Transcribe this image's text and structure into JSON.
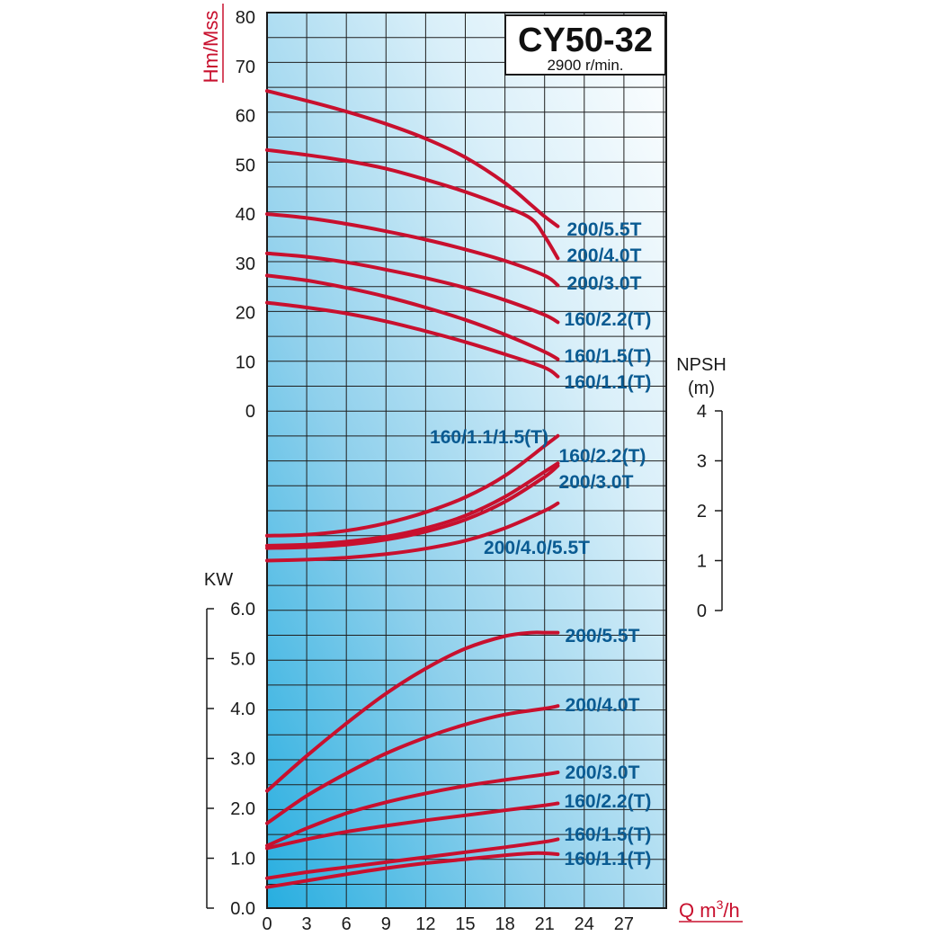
{
  "chart_data": {
    "type": "line",
    "title": "CY50-32",
    "subtitle": "2900 r/min.",
    "xlabel": "Q m³/h",
    "xlabel_base": "Q m",
    "xlabel_sup": "3",
    "xlabel_tail": "/h",
    "x_ticks": [
      "0",
      "3",
      "6",
      "9",
      "12",
      "15",
      "18",
      "21",
      "24",
      "27"
    ],
    "xlim": [
      0,
      30
    ],
    "grid": true,
    "colors": {
      "curve": "#c8102e",
      "label": "#0a5b92",
      "grid": "#1a1a1a"
    },
    "panels": [
      {
        "name": "head",
        "ylabel": "Hm/Mss",
        "ylim": [
          0,
          80
        ],
        "y_ticks": [
          "0",
          "10",
          "20",
          "30",
          "40",
          "50",
          "60",
          "70",
          "80"
        ],
        "series": [
          {
            "name": "200/5.5T",
            "x": [
              0,
              3,
              6,
              9,
              12,
              15,
              18,
              20,
              21,
              22
            ],
            "y": [
              65,
              63,
              60.8,
              58.3,
              55.3,
              51.5,
              46.3,
              41.8,
              39.5,
              37.5
            ]
          },
          {
            "name": "200/4.0T",
            "x": [
              0,
              3,
              6,
              9,
              12,
              15,
              18,
              20,
              21,
              22
            ],
            "y": [
              53,
              52,
              50.8,
              49.2,
              47,
              44.5,
              41.5,
              39,
              35.5,
              31
            ]
          },
          {
            "name": "200/3.0T",
            "x": [
              0,
              3,
              6,
              9,
              12,
              15,
              18,
              21,
              22
            ],
            "y": [
              40,
              39.2,
              38,
              36.5,
              34.8,
              32.8,
              30.5,
              27.5,
              25.5
            ]
          },
          {
            "name": "160/2.2(T)",
            "x": [
              0,
              3,
              6,
              9,
              12,
              15,
              18,
              21,
              22
            ],
            "y": [
              32,
              31.3,
              30.2,
              28.7,
              27,
              25,
              22.5,
              19.5,
              18
            ]
          },
          {
            "name": "160/1.5(T)",
            "x": [
              0,
              3,
              6,
              9,
              12,
              15,
              18,
              21,
              22
            ],
            "y": [
              27.5,
              26.5,
              25,
              23.2,
              21,
              18.5,
              15.5,
              12,
              10.5
            ]
          },
          {
            "name": "160/1.1(T)",
            "x": [
              0,
              3,
              6,
              9,
              12,
              15,
              18,
              21,
              22
            ],
            "y": [
              22,
              21,
              19.8,
              18.2,
              16.2,
              14,
              11.5,
              8.8,
              7
            ]
          }
        ],
        "labels": [
          "200/5.5T",
          "200/4.0T",
          "200/3.0T",
          "160/2.2(T)",
          "160/1.5(T)",
          "160/1.1(T)"
        ]
      },
      {
        "name": "npsh",
        "ylabel": "NPSH",
        "ylabel_unit": "(m)",
        "ylim": [
          0,
          4
        ],
        "y_ticks": [
          "0",
          "1",
          "2",
          "3",
          "4"
        ],
        "series": [
          {
            "name": "160/1.1/1.5(T)",
            "x": [
              0,
              3,
              6,
              9,
              12,
              15,
              18,
              21,
              22
            ],
            "y": [
              1.5,
              1.52,
              1.6,
              1.75,
              1.97,
              2.27,
              2.7,
              3.3,
              3.5
            ]
          },
          {
            "name": "160/2.2(T)",
            "x": [
              0,
              3,
              6,
              9,
              12,
              15,
              18,
              21,
              22
            ],
            "y": [
              1.3,
              1.32,
              1.38,
              1.48,
              1.65,
              1.9,
              2.28,
              2.78,
              2.95
            ]
          },
          {
            "name": "200/3.0T",
            "x": [
              0,
              3,
              6,
              9,
              12,
              15,
              18,
              21,
              22
            ],
            "y": [
              1.25,
              1.27,
              1.32,
              1.42,
              1.58,
              1.82,
              2.18,
              2.68,
              2.9
            ]
          },
          {
            "name": "200/4.0/5.5T",
            "x": [
              0,
              3,
              6,
              9,
              12,
              15,
              18,
              21,
              22
            ],
            "y": [
              1.0,
              1.02,
              1.06,
              1.13,
              1.24,
              1.4,
              1.65,
              2.0,
              2.15
            ]
          }
        ],
        "labels": [
          "160/1.1/1.5(T)",
          "160/2.2(T)",
          "200/3.0T",
          "200/4.0/5.5T"
        ]
      },
      {
        "name": "power",
        "ylabel": "KW",
        "ylim": [
          0,
          6
        ],
        "y_ticks": [
          "0.0",
          "1.0",
          "2.0",
          "3.0",
          "4.0",
          "5.0",
          "6.0"
        ],
        "series": [
          {
            "name": "200/5.5T",
            "x": [
              0,
              3,
              6,
              9,
              12,
              15,
              18,
              20,
              21,
              22
            ],
            "y": [
              2.35,
              3.05,
              3.7,
              4.3,
              4.8,
              5.2,
              5.45,
              5.52,
              5.52,
              5.52
            ]
          },
          {
            "name": "200/4.0T",
            "x": [
              0,
              3,
              6,
              9,
              12,
              15,
              18,
              21,
              22
            ],
            "y": [
              1.7,
              2.25,
              2.7,
              3.1,
              3.42,
              3.68,
              3.88,
              4.0,
              4.05
            ]
          },
          {
            "name": "200/3.0T",
            "x": [
              0,
              3,
              6,
              9,
              12,
              15,
              18,
              21,
              22
            ],
            "y": [
              1.25,
              1.6,
              1.9,
              2.12,
              2.3,
              2.45,
              2.57,
              2.68,
              2.72
            ]
          },
          {
            "name": "160/2.2(T)",
            "x": [
              0,
              3,
              6,
              9,
              12,
              15,
              18,
              21,
              22
            ],
            "y": [
              1.2,
              1.38,
              1.53,
              1.65,
              1.76,
              1.86,
              1.96,
              2.06,
              2.1
            ]
          },
          {
            "name": "160/1.5(T)",
            "x": [
              0,
              3,
              6,
              9,
              12,
              15,
              18,
              21,
              22
            ],
            "y": [
              0.6,
              0.72,
              0.82,
              0.92,
              1.02,
              1.12,
              1.22,
              1.33,
              1.38
            ]
          },
          {
            "name": "160/1.1(T)",
            "x": [
              0,
              3,
              6,
              9,
              12,
              15,
              18,
              20,
              21,
              22
            ],
            "y": [
              0.42,
              0.55,
              0.68,
              0.8,
              0.9,
              0.98,
              1.06,
              1.1,
              1.1,
              1.08
            ]
          }
        ],
        "labels": [
          "200/5.5T",
          "200/4.0T",
          "200/3.0T",
          "160/2.2(T)",
          "160/1.5(T)",
          "160/1.1(T)"
        ]
      }
    ]
  }
}
